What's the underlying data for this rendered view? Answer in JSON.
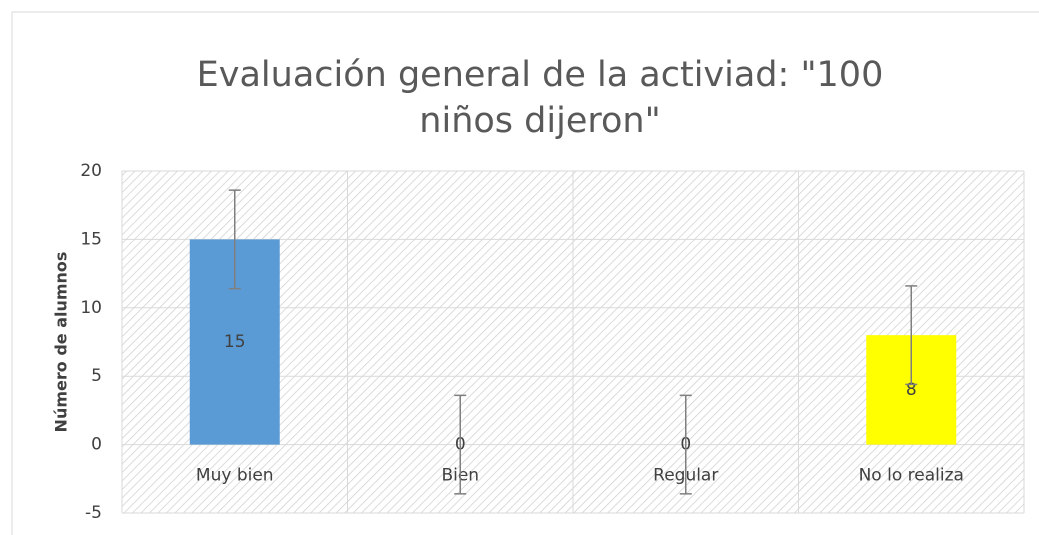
{
  "chart_data": {
    "type": "bar",
    "title": "Evaluación general de la activiad: \"100 niños dijeron\"",
    "y_label": "Número de alumnos",
    "categories": [
      "Muy bien",
      "Bien",
      "Regular",
      "No lo realiza"
    ],
    "values": [
      15,
      0,
      0,
      8
    ],
    "errors": [
      3.6,
      3.6,
      3.6,
      3.6
    ],
    "colors": [
      "#5b9bd5",
      "#5b9bd5",
      "#5b9bd5",
      "#ffff00"
    ],
    "ylim": [
      -5,
      20
    ],
    "yticks": [
      -5,
      0,
      5,
      10,
      15,
      20
    ],
    "grid": true
  }
}
